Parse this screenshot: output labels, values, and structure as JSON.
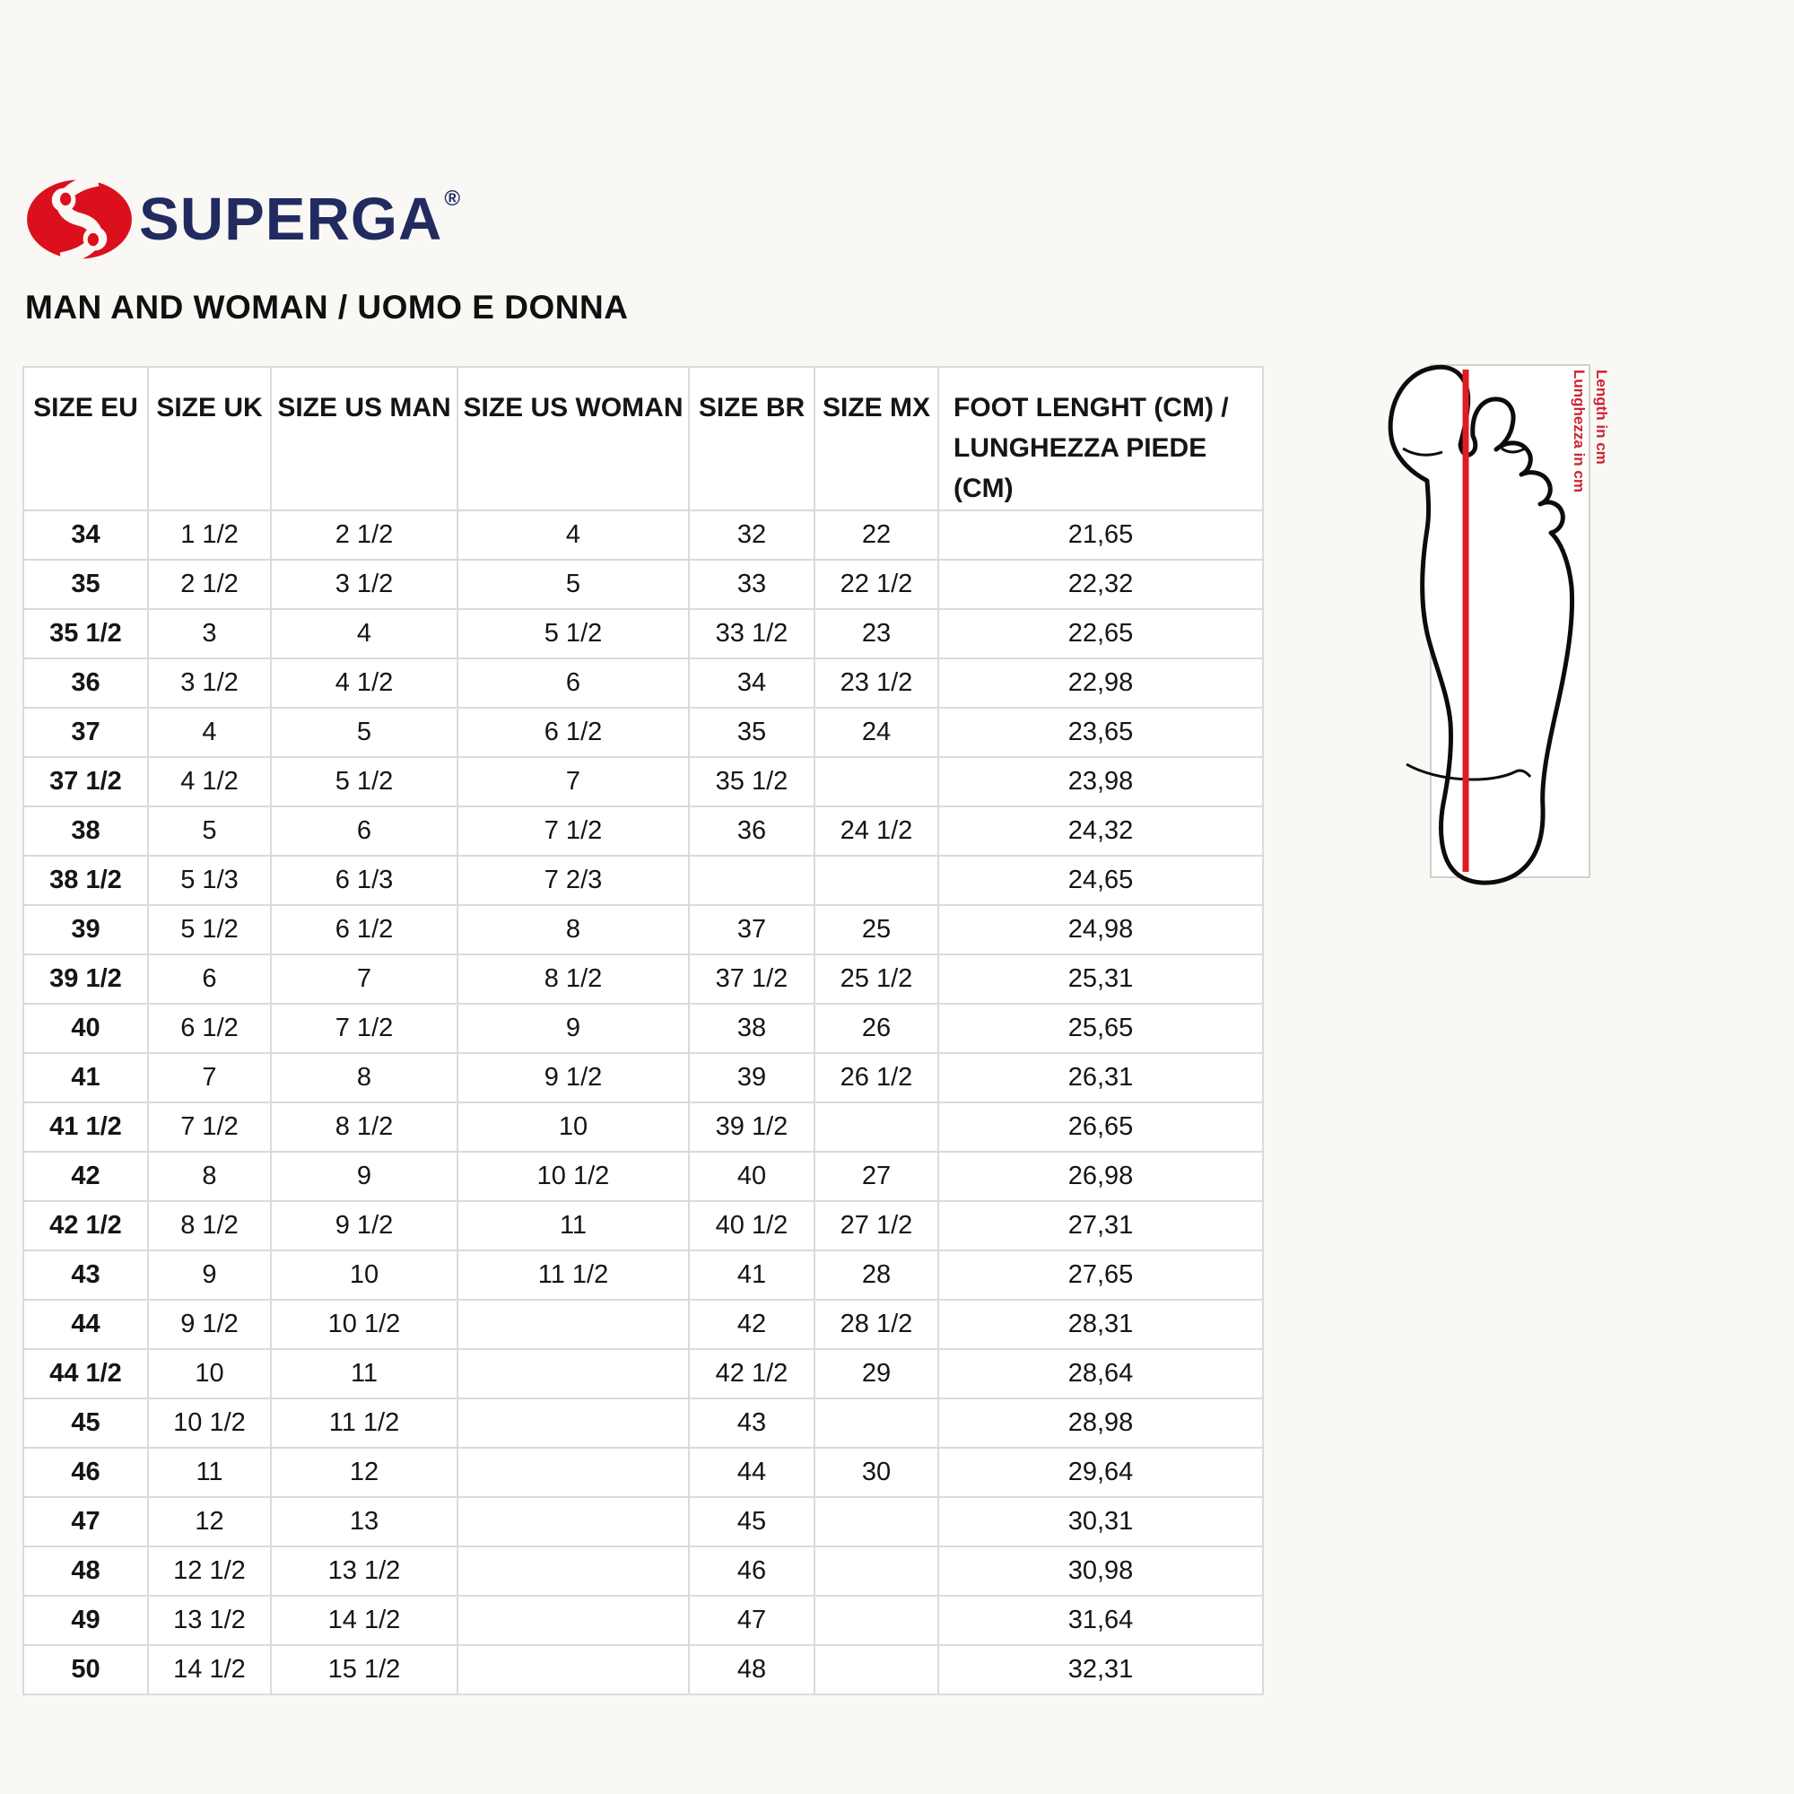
{
  "brand": {
    "name": "SUPERGA",
    "registered": "®",
    "logo_red": "#dc0f1d",
    "logo_navy": "#212b5f"
  },
  "heading": "MAN AND WOMAN / UOMO E DONNA",
  "table": {
    "headers": [
      "SIZE EU",
      "SIZE UK",
      "SIZE US MAN",
      "SIZE US WOMAN",
      "SIZE BR",
      "SIZE MX",
      "FOOT LENGHT (CM) /\nLUNGHEZZA PIEDE (CM)"
    ],
    "rows": [
      [
        "34",
        "1 1/2",
        "2 1/2",
        "4",
        "32",
        "22",
        "21,65"
      ],
      [
        "35",
        "2 1/2",
        "3 1/2",
        "5",
        "33",
        "22 1/2",
        "22,32"
      ],
      [
        "35 1/2",
        "3",
        "4",
        "5 1/2",
        "33 1/2",
        "23",
        "22,65"
      ],
      [
        "36",
        "3 1/2",
        "4 1/2",
        "6",
        "34",
        "23 1/2",
        "22,98"
      ],
      [
        "37",
        "4",
        "5",
        "6 1/2",
        "35",
        "24",
        "23,65"
      ],
      [
        "37 1/2",
        "4 1/2",
        "5 1/2",
        "7",
        "35 1/2",
        "",
        "23,98"
      ],
      [
        "38",
        "5",
        "6",
        "7 1/2",
        "36",
        "24 1/2",
        "24,32"
      ],
      [
        "38 1/2",
        "5 1/3",
        "6 1/3",
        "7 2/3",
        "",
        "",
        "24,65"
      ],
      [
        "39",
        "5 1/2",
        "6 1/2",
        "8",
        "37",
        "25",
        "24,98"
      ],
      [
        "39 1/2",
        "6",
        "7",
        "8 1/2",
        "37 1/2",
        "25 1/2",
        "25,31"
      ],
      [
        "40",
        "6 1/2",
        "7 1/2",
        "9",
        "38",
        "26",
        "25,65"
      ],
      [
        "41",
        "7",
        "8",
        "9 1/2",
        "39",
        "26 1/2",
        "26,31"
      ],
      [
        "41 1/2",
        "7 1/2",
        "8 1/2",
        "10",
        "39 1/2",
        "",
        "26,65"
      ],
      [
        "42",
        "8",
        "9",
        "10 1/2",
        "40",
        "27",
        "26,98"
      ],
      [
        "42 1/2",
        "8 1/2",
        "9 1/2",
        "11",
        "40 1/2",
        "27 1/2",
        "27,31"
      ],
      [
        "43",
        "9",
        "10",
        "11 1/2",
        "41",
        "28",
        "27,65"
      ],
      [
        "44",
        "9 1/2",
        "10 1/2",
        "",
        "42",
        "28 1/2",
        "28,31"
      ],
      [
        "44 1/2",
        "10",
        "11",
        "",
        "42 1/2",
        "29",
        "28,64"
      ],
      [
        "45",
        "10 1/2",
        "11 1/2",
        "",
        "43",
        "",
        "28,98"
      ],
      [
        "46",
        "11",
        "12",
        "",
        "44",
        "30",
        "29,64"
      ],
      [
        "47",
        "12",
        "13",
        "",
        "45",
        "",
        "30,31"
      ],
      [
        "48",
        "12 1/2",
        "13 1/2",
        "",
        "46",
        "",
        "30,98"
      ],
      [
        "49",
        "13 1/2",
        "14 1/2",
        "",
        "47",
        "",
        "31,64"
      ],
      [
        "50",
        "14 1/2",
        "15 1/2",
        "",
        "48",
        "",
        "32,31"
      ]
    ]
  },
  "diagram": {
    "label_en": "Length in cm",
    "label_it": "Lunghezza in cm",
    "measure_line_color": "#e11b22",
    "label_color": "#cf2231"
  },
  "colors": {
    "page_background": "#faf8f5",
    "cell_background": "#ffffff",
    "grid_line": "#dadad8",
    "text": "#151515"
  }
}
